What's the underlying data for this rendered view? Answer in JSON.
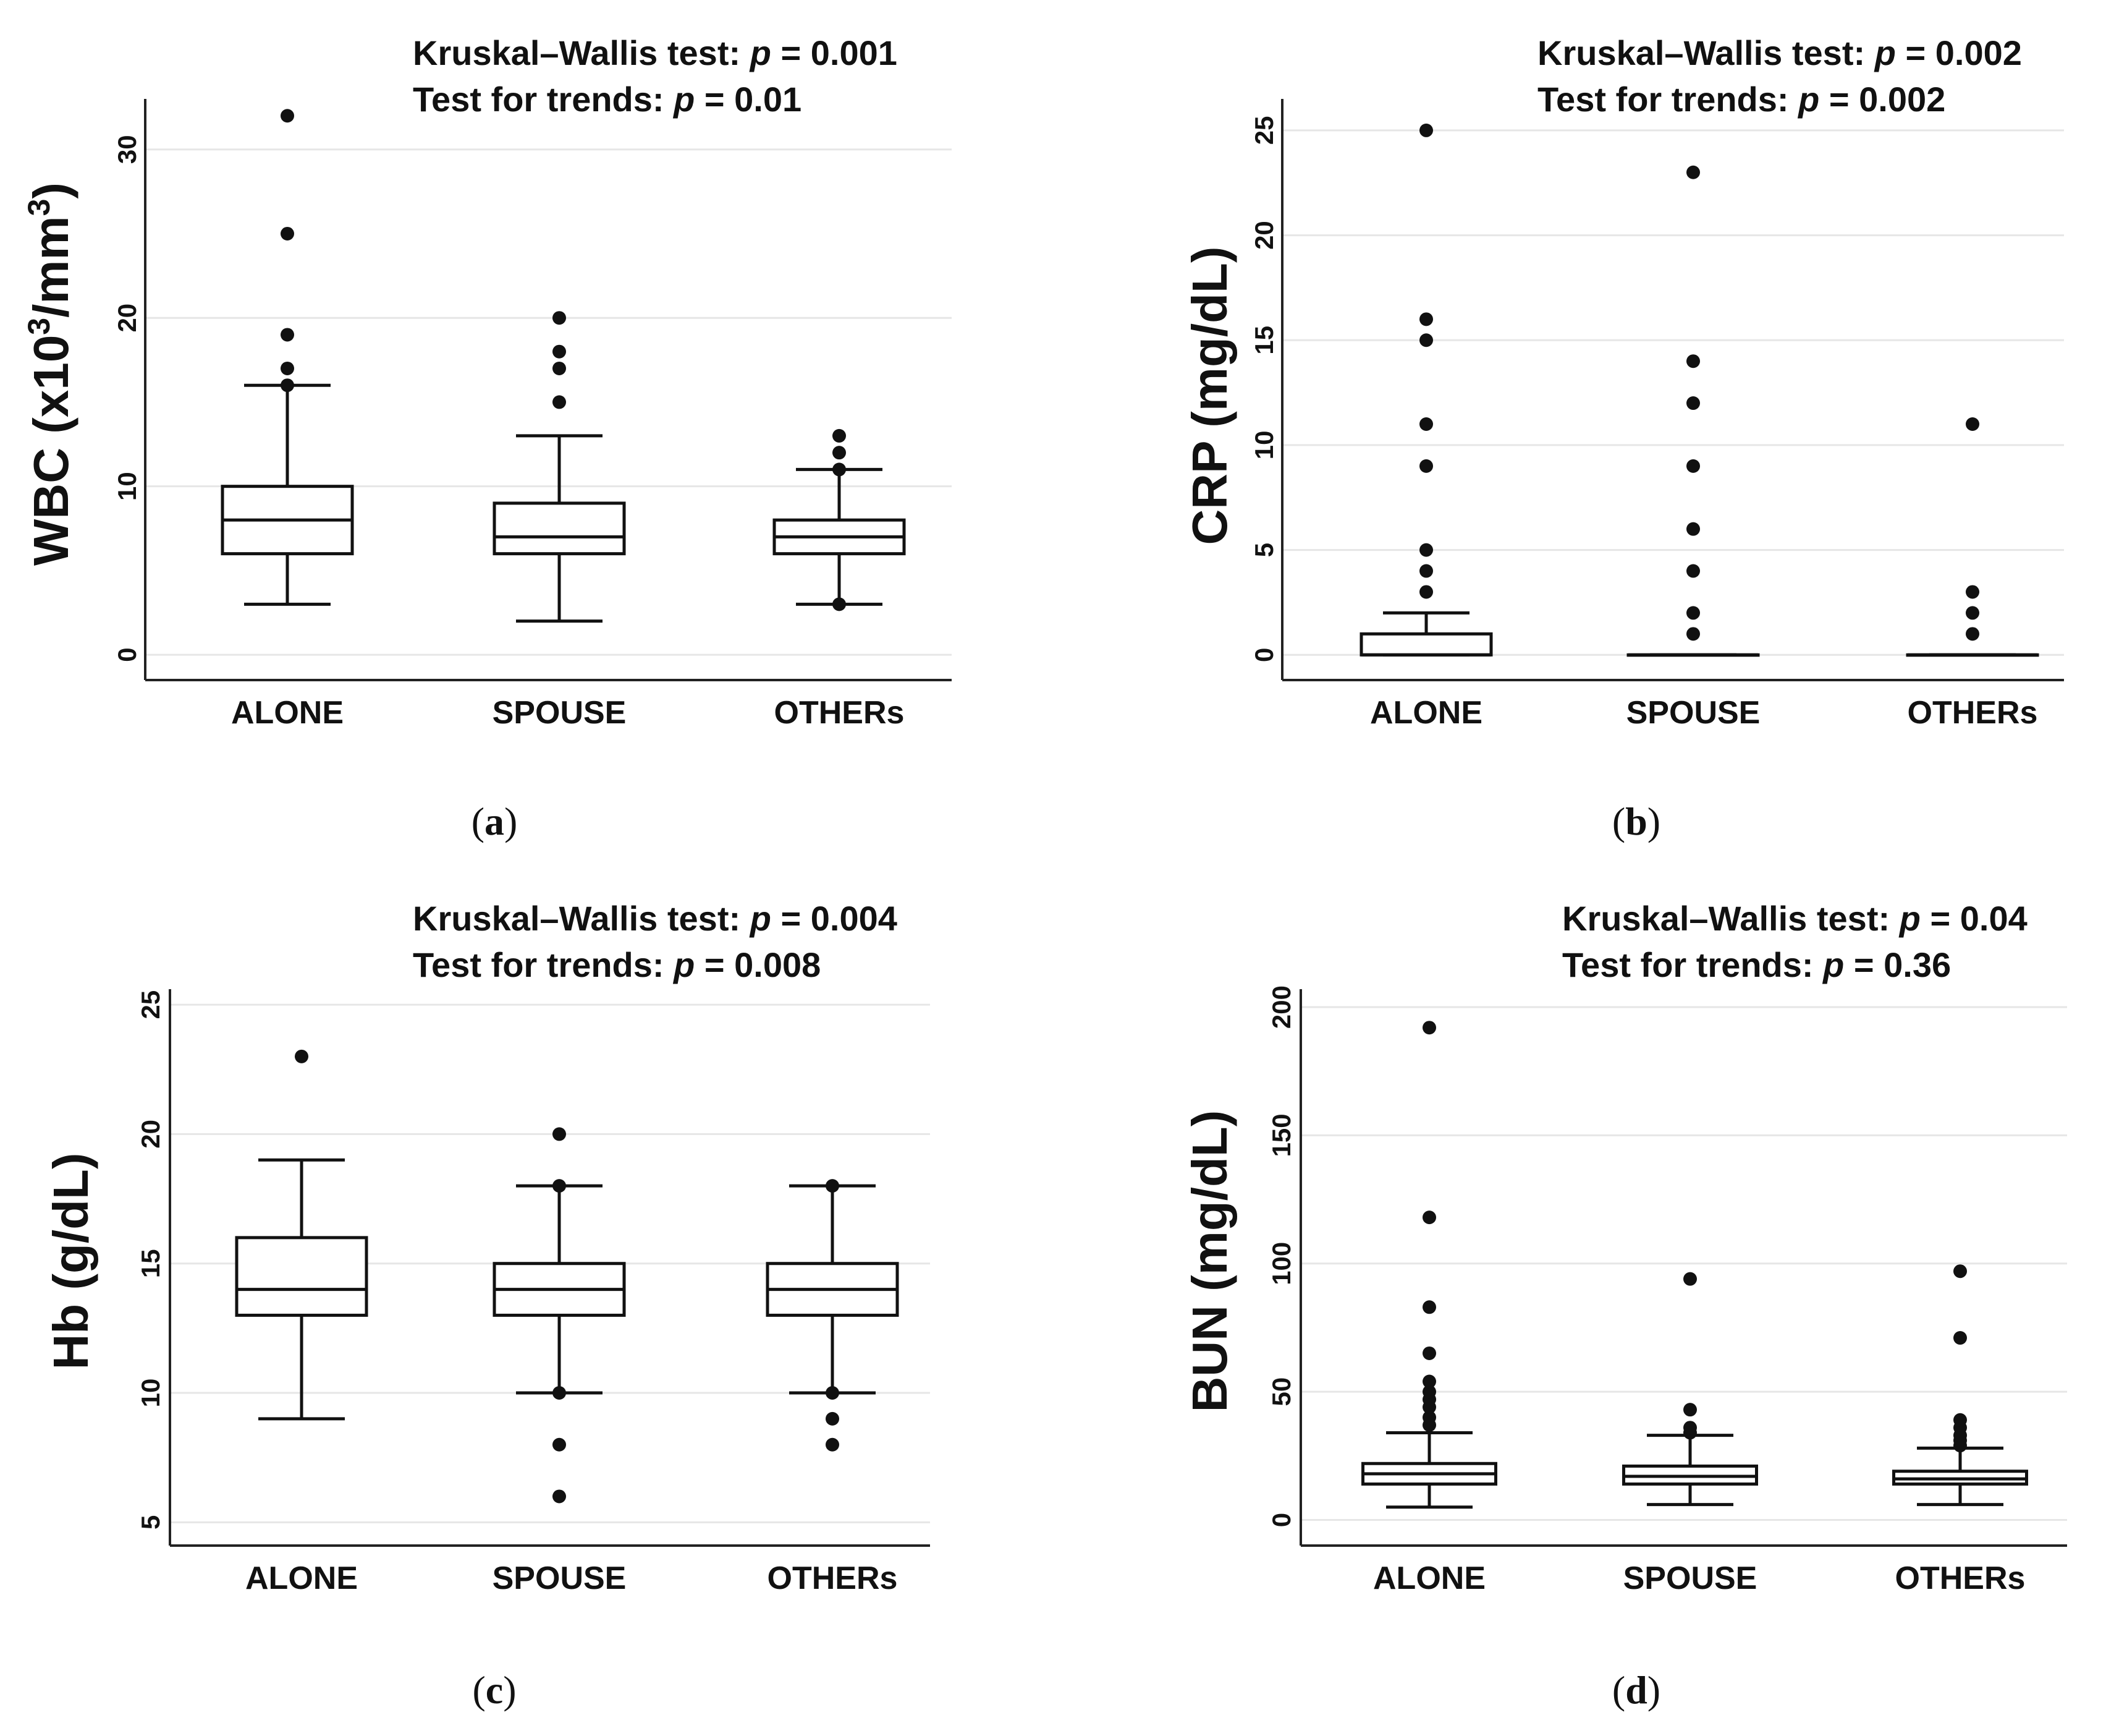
{
  "chart_data": [
    {
      "id": "a",
      "type": "box",
      "caption": "a",
      "annotation": {
        "kw_label": "Kruskal–Wallis test:",
        "p_symbol": "p",
        "eq": "=",
        "kw_p": "0.001",
        "trend_label": "Test for trends:",
        "trend_p": "0.01"
      },
      "ylabel": {
        "main": "WBC (x10",
        "sup": "3",
        "mid": "/mm",
        "sup2": "3",
        "end": ")"
      },
      "ylim": [
        -1.5,
        33
      ],
      "yticks": [
        0,
        10,
        20,
        30
      ],
      "categories": [
        "ALONE",
        "SPOUSE",
        "OTHERs"
      ],
      "boxes": [
        {
          "q1": 6,
          "median": 8,
          "q3": 10,
          "whisker_low": 3,
          "whisker_high": 16,
          "outliers": [
            16,
            17,
            19,
            25,
            32
          ]
        },
        {
          "q1": 6,
          "median": 7,
          "q3": 9,
          "whisker_low": 2,
          "whisker_high": 13,
          "outliers": [
            15,
            17,
            18,
            20
          ]
        },
        {
          "q1": 6,
          "median": 7,
          "q3": 8,
          "whisker_low": 3,
          "whisker_high": 11,
          "outliers": [
            3,
            11,
            12,
            13
          ]
        }
      ]
    },
    {
      "id": "b",
      "type": "box",
      "caption": "b",
      "annotation": {
        "kw_label": "Kruskal–Wallis test:",
        "p_symbol": "p",
        "eq": "=",
        "kw_p": "0.002",
        "trend_label": "Test for trends:",
        "trend_p": "0.002"
      },
      "ylabel": {
        "main": "CRP (mg/dL)"
      },
      "ylim": [
        -1.2,
        26.5
      ],
      "yticks": [
        0,
        5,
        10,
        15,
        20,
        25
      ],
      "categories": [
        "ALONE",
        "SPOUSE",
        "OTHERs"
      ],
      "boxes": [
        {
          "q1": 0,
          "median": 0,
          "q3": 1,
          "whisker_low": 0,
          "whisker_high": 2,
          "outliers": [
            3,
            4,
            5,
            9,
            11,
            15,
            16,
            25
          ]
        },
        {
          "q1": 0,
          "median": 0,
          "q3": 0,
          "whisker_low": 0,
          "whisker_high": 0,
          "outliers": [
            1,
            2,
            4,
            6,
            9,
            12,
            14,
            23
          ]
        },
        {
          "q1": 0,
          "median": 0,
          "q3": 0,
          "whisker_low": 0,
          "whisker_high": 0,
          "outliers": [
            1,
            2,
            3,
            11
          ]
        }
      ]
    },
    {
      "id": "c",
      "type": "box",
      "caption": "c",
      "annotation": {
        "kw_label": "Kruskal–Wallis test:",
        "p_symbol": "p",
        "eq": "=",
        "kw_p": "0.004",
        "trend_label": "Test for trends:",
        "trend_p": "0.008"
      },
      "ylabel": {
        "main": "Hb (g/dL)"
      },
      "ylim": [
        4.1,
        25.6
      ],
      "yticks": [
        5,
        10,
        15,
        20,
        25
      ],
      "categories": [
        "ALONE",
        "SPOUSE",
        "OTHERs"
      ],
      "boxes": [
        {
          "q1": 13,
          "median": 14,
          "q3": 16,
          "whisker_low": 9,
          "whisker_high": 19,
          "outliers": [
            23
          ]
        },
        {
          "q1": 13,
          "median": 14,
          "q3": 15,
          "whisker_low": 10,
          "whisker_high": 18,
          "outliers": [
            6,
            8,
            10,
            18,
            20
          ]
        },
        {
          "q1": 13,
          "median": 14,
          "q3": 15,
          "whisker_low": 10,
          "whisker_high": 18,
          "outliers": [
            8,
            9,
            10,
            18
          ]
        }
      ]
    },
    {
      "id": "d",
      "type": "box",
      "caption": "d",
      "annotation": {
        "kw_label": "Kruskal–Wallis test:",
        "p_symbol": "p",
        "eq": "=",
        "kw_p": "0.04",
        "trend_label": "Test for trends:",
        "trend_p": "0.36"
      },
      "ylabel": {
        "main": "BUN (mg/dL)"
      },
      "ylim": [
        -10,
        207
      ],
      "yticks": [
        0,
        50,
        100,
        150,
        200
      ],
      "categories": [
        "ALONE",
        "SPOUSE",
        "OTHERs"
      ],
      "boxes": [
        {
          "q1": 14,
          "median": 18,
          "q3": 22,
          "whisker_low": 5,
          "whisker_high": 34,
          "outliers": [
            37,
            40,
            44,
            47,
            50,
            54,
            65,
            83,
            118,
            192
          ]
        },
        {
          "q1": 14,
          "median": 17,
          "q3": 21,
          "whisker_low": 6,
          "whisker_high": 33,
          "outliers": [
            34,
            36,
            43,
            94
          ]
        },
        {
          "q1": 14,
          "median": 16,
          "q3": 19,
          "whisker_low": 6,
          "whisker_high": 28,
          "outliers": [
            29,
            31,
            33,
            36,
            39,
            71,
            97
          ]
        }
      ]
    }
  ]
}
